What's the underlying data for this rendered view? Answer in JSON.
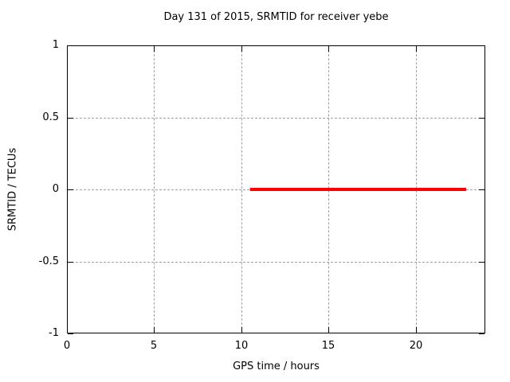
{
  "window": {
    "background_color": "#ffffff",
    "text_color": "#000000"
  },
  "chart_data": {
    "type": "line",
    "title": "Day 131 of 2015, SRMTID for receiver yebe",
    "xlabel": "GPS time / hours",
    "ylabel": "SRMTID / TECUs",
    "xlim": [
      0,
      24
    ],
    "ylim": [
      -1,
      1
    ],
    "xticks": [
      0,
      5,
      10,
      15,
      20
    ],
    "yticks": [
      1,
      0.5,
      0,
      -0.5,
      -1
    ],
    "grid": true,
    "grid_style": "dashed",
    "grid_color": "#a0a0a0",
    "axis_color": "#000000",
    "legend": "none",
    "series": [
      {
        "name": "SRMTID",
        "color": "#ff0000",
        "line_width": 4,
        "x": [
          10.5,
          22.9
        ],
        "y": [
          0,
          0
        ]
      }
    ]
  }
}
